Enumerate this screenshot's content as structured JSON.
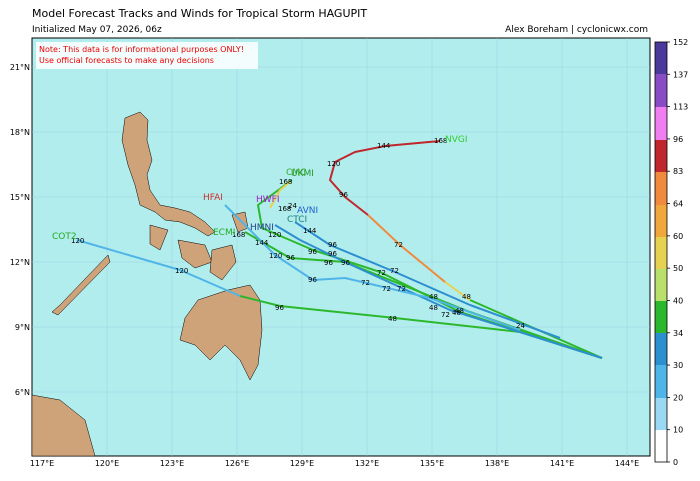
{
  "header": {
    "title": "Model Forecast Tracks and Winds for Tropical Storm HAGUPIT",
    "subtitle": "Initialized May 07, 2026, 06z",
    "credit": "Alex Boreham | cyclonicwx.com"
  },
  "note": [
    "Note: This data is for informational purposes ONLY!",
    "Use official forecasts to make any decisions"
  ],
  "map": {
    "lon_labels": [
      "117°E",
      "120°E",
      "123°E",
      "126°E",
      "129°E",
      "132°E",
      "135°E",
      "138°E",
      "141°E",
      "144°E"
    ],
    "lat_labels": [
      "21°N",
      "18°N",
      "15°N",
      "12°N",
      "9°N",
      "6°N"
    ],
    "models": [
      "NVGI",
      "CMC",
      "UKMI",
      "HFAI",
      "HWFI",
      "AVNI",
      "CTCI",
      "ECMI",
      "COT2",
      "HMNI"
    ],
    "hour_labels": [
      "144",
      "168",
      "120",
      "96",
      "72",
      "48",
      "24",
      "48",
      "48",
      "48",
      "48",
      "72",
      "72",
      "72",
      "72",
      "72",
      "72",
      "96",
      "96",
      "96",
      "96",
      "96",
      "96",
      "96",
      "96",
      "120",
      "120",
      "120",
      "120",
      "144",
      "144",
      "168",
      "168",
      "168",
      "24",
      "48"
    ]
  },
  "colorbar": {
    "ticks": [
      "152",
      "137",
      "113",
      "96",
      "83",
      "64",
      "60",
      "50",
      "40",
      "34",
      "30",
      "20",
      "10",
      "0"
    ]
  }
}
